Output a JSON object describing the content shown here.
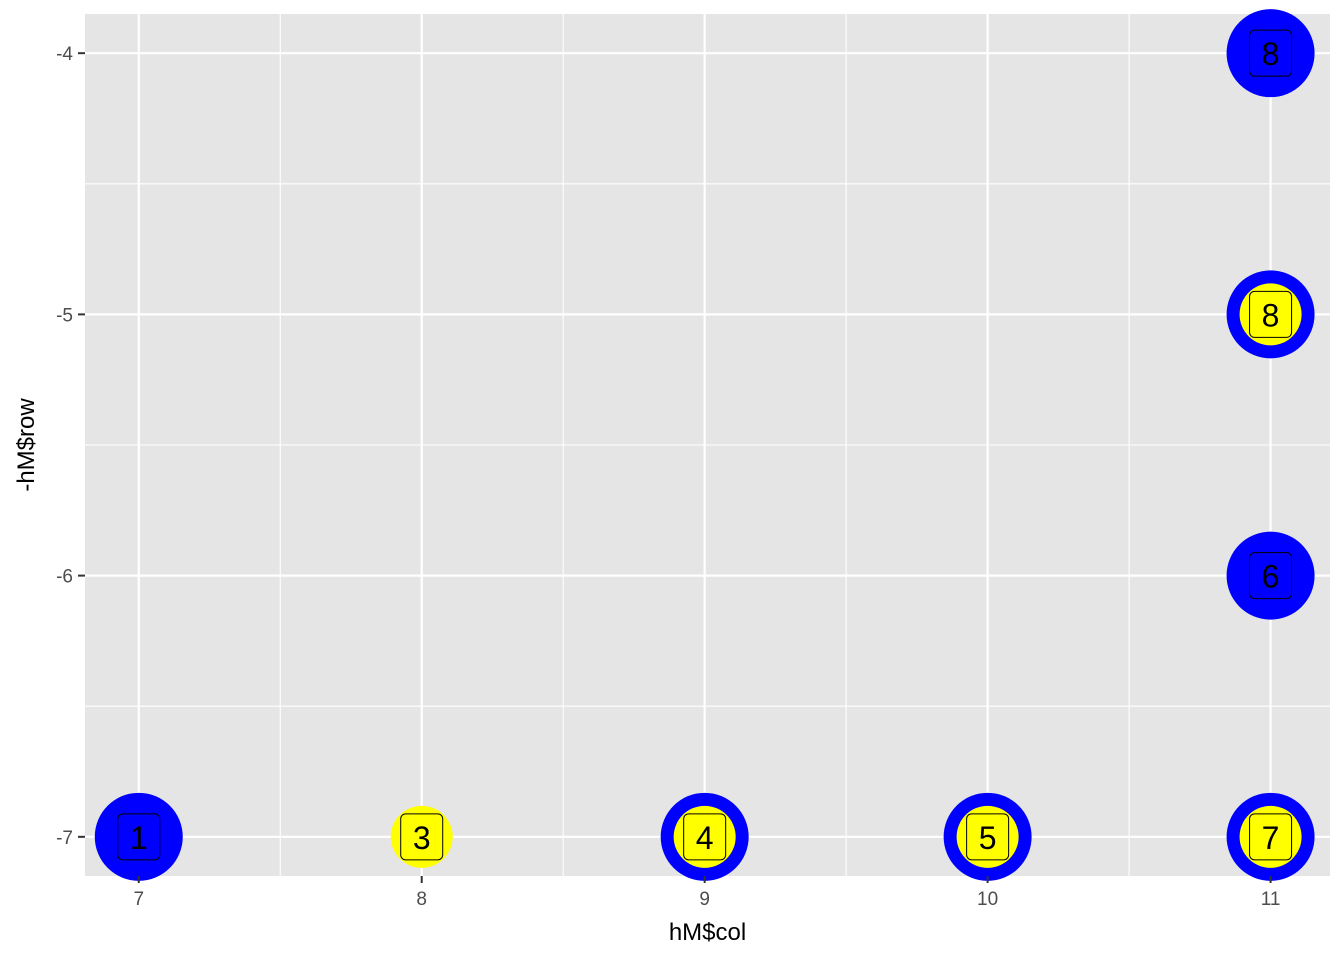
{
  "chart_data": {
    "type": "scatter",
    "title": "",
    "xlabel": "hM$col",
    "ylabel": "-hM$row",
    "xlim": [
      6.81,
      11.21
    ],
    "ylim": [
      -7.15,
      -3.85
    ],
    "x_ticks": [
      7,
      8,
      9,
      10,
      11
    ],
    "y_ticks": [
      -7,
      -6,
      -5,
      -4
    ],
    "x_tick_labels": [
      "7",
      "8",
      "9",
      "10",
      "11"
    ],
    "y_tick_labels": [
      "-7",
      "-6",
      "-5",
      "-4"
    ],
    "grid": true,
    "colors": {
      "panel": "#e5e5e5",
      "grid": "#ffffff",
      "outer_fill": "#0000ff",
      "inner_fill": "#ffff00",
      "label_fill_blue": "#0000ff",
      "label_fill_yellow": "#ffff00"
    },
    "points": [
      {
        "x": 7,
        "y": -7,
        "label": "1",
        "outer": true,
        "inner": false
      },
      {
        "x": 8,
        "y": -7,
        "label": "3",
        "outer": false,
        "inner": true
      },
      {
        "x": 9,
        "y": -7,
        "label": "4",
        "outer": true,
        "inner": true
      },
      {
        "x": 10,
        "y": -7,
        "label": "5",
        "outer": true,
        "inner": true
      },
      {
        "x": 11,
        "y": -7,
        "label": "7",
        "outer": true,
        "inner": true
      },
      {
        "x": 11,
        "y": -6,
        "label": "6",
        "outer": true,
        "inner": false
      },
      {
        "x": 11,
        "y": -5,
        "label": "8",
        "outer": true,
        "inner": true
      },
      {
        "x": 11,
        "y": -4,
        "label": "8",
        "outer": true,
        "inner": false
      }
    ]
  }
}
